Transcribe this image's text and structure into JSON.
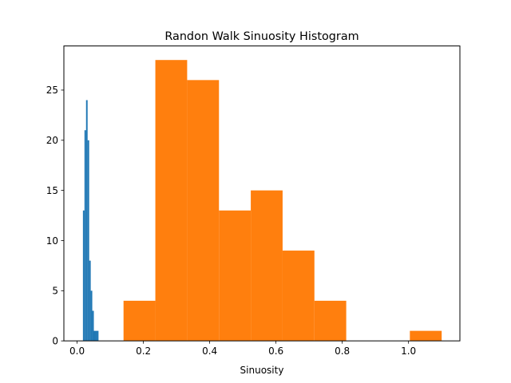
{
  "chart_data": {
    "type": "histogram",
    "title": "Randon Walk Sinuosity Histogram",
    "xlabel": "Sinuosity",
    "ylabel": "",
    "xlim": [
      -0.04,
      1.155
    ],
    "ylim": [
      0,
      29.4
    ],
    "xticks": [
      0.0,
      0.2,
      0.4,
      0.6,
      0.8,
      1.0
    ],
    "xtick_labels": [
      "0.0",
      "0.2",
      "0.4",
      "0.6",
      "0.8",
      "1.0"
    ],
    "yticks": [
      0,
      5,
      10,
      15,
      20,
      25
    ],
    "ytick_labels": [
      "0",
      "5",
      "10",
      "15",
      "20",
      "25"
    ],
    "grid": false,
    "legend": false,
    "series": [
      {
        "color": "#1f77b4",
        "bins": [
          0.0175,
          0.0222,
          0.0269,
          0.0316,
          0.0363,
          0.041,
          0.0457,
          0.0504,
          0.0551,
          0.0598,
          0.0645
        ],
        "counts": [
          13,
          21,
          24,
          20,
          8,
          5,
          3,
          1,
          1,
          1
        ]
      },
      {
        "color": "#ff7f0e",
        "bins": [
          0.14,
          0.236,
          0.332,
          0.428,
          0.524,
          0.62,
          0.716,
          0.812,
          0.908,
          1.004,
          1.1
        ],
        "counts": [
          4,
          28,
          26,
          13,
          15,
          9,
          4,
          0,
          0,
          1
        ]
      }
    ]
  }
}
